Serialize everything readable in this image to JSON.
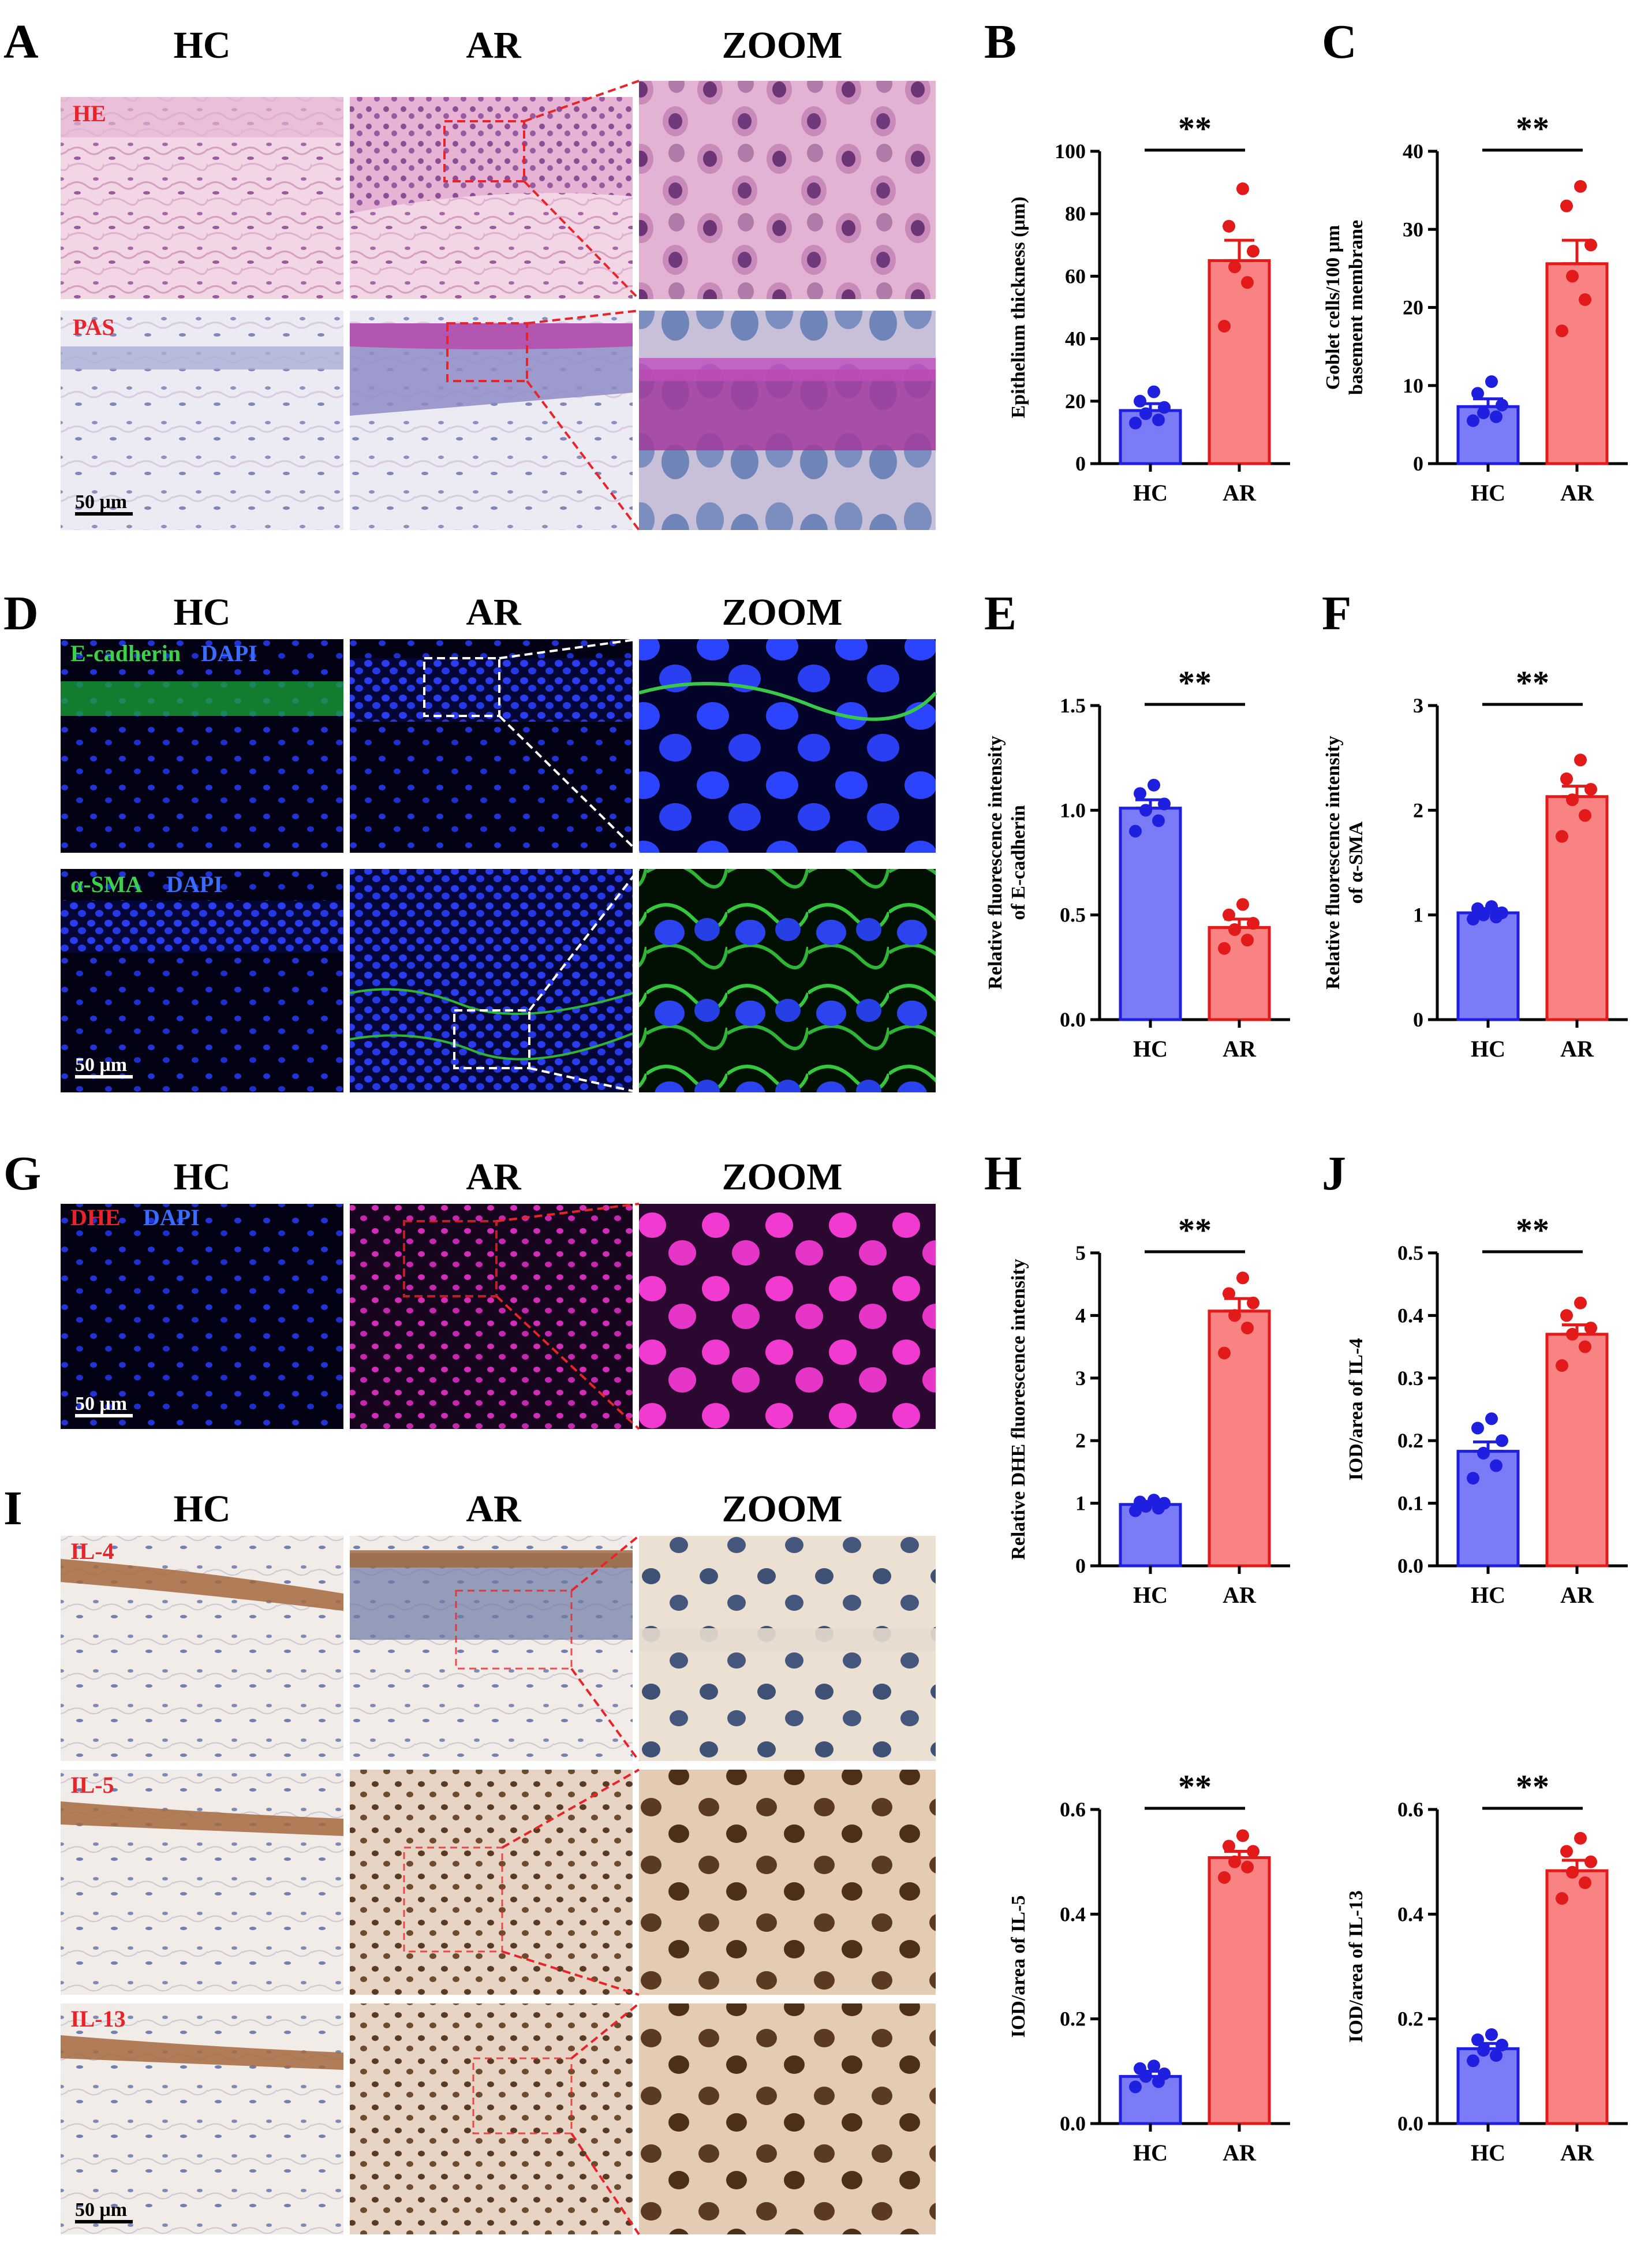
{
  "colors": {
    "hc_fill": "#7b7bf7",
    "hc_edge": "#1f1fe0",
    "ar_fill": "#f98383",
    "ar_edge": "#e21a1a",
    "stain_red": "#e8242a",
    "egfp": "#3dd14a",
    "dapi": "#3b6cff"
  },
  "panel_letters": {
    "A": "A",
    "B": "B",
    "C": "C",
    "D": "D",
    "E": "E",
    "F": "F",
    "G": "G",
    "H": "H",
    "I": "I",
    "J": "J"
  },
  "column_headers": {
    "hc": "HC",
    "ar": "AR",
    "zoom": "ZOOM"
  },
  "stains": {
    "he": "HE",
    "pas": "PAS",
    "ecad": "E-cadherin",
    "asma": "α-SMA",
    "dapi": "DAPI",
    "dhe": "DHE",
    "il4": "IL-4",
    "il5": "IL-5",
    "il13": "IL-13"
  },
  "scale_bar": "50 μm",
  "chart_data": [
    {
      "type": "bar",
      "panel": "B",
      "categories": [
        "HC",
        "AR"
      ],
      "means": [
        17,
        65
      ],
      "sem": [
        2.2,
        6.5
      ],
      "points": [
        [
          13,
          14,
          16,
          18,
          20,
          23
        ],
        [
          44,
          58,
          63,
          68,
          76,
          88
        ]
      ],
      "ylim": [
        0,
        100
      ],
      "yticks": [
        0,
        20,
        40,
        60,
        80,
        100
      ],
      "yticklabels": [
        "0",
        "20",
        "40",
        "60",
        "80",
        "100"
      ],
      "ylabel": [
        "Epithelium thickness (μm)"
      ],
      "significance": "**"
    },
    {
      "type": "bar",
      "panel": "C",
      "categories": [
        "HC",
        "AR"
      ],
      "means": [
        7.3,
        25.6
      ],
      "sem": [
        1.0,
        3.0
      ],
      "points": [
        [
          5.5,
          6,
          6.5,
          7.5,
          9,
          10.5
        ],
        [
          17,
          21,
          24,
          28,
          33,
          35.5
        ]
      ],
      "ylim": [
        0,
        40
      ],
      "yticks": [
        0,
        10,
        20,
        30,
        40
      ],
      "yticklabels": [
        "0",
        "10",
        "20",
        "30",
        "40"
      ],
      "ylabel": [
        "Goblet cells/100 μm",
        "basement membrane"
      ],
      "significance": "**"
    },
    {
      "type": "bar",
      "panel": "E",
      "categories": [
        "HC",
        "AR"
      ],
      "means": [
        1.01,
        0.44
      ],
      "sem": [
        0.04,
        0.04
      ],
      "points": [
        [
          0.9,
          0.95,
          1.0,
          1.03,
          1.08,
          1.12
        ],
        [
          0.34,
          0.38,
          0.43,
          0.46,
          0.5,
          0.55
        ]
      ],
      "ylim": [
        0,
        1.5
      ],
      "yticks": [
        0,
        0.5,
        1.0,
        1.5
      ],
      "yticklabels": [
        "0.0",
        "0.5",
        "1.0",
        "1.5"
      ],
      "ylabel": [
        "Relative fluorescence intensity",
        "of E-cadherin"
      ],
      "significance": "**"
    },
    {
      "type": "bar",
      "panel": "F",
      "categories": [
        "HC",
        "AR"
      ],
      "means": [
        1.02,
        2.13
      ],
      "sem": [
        0.04,
        0.1
      ],
      "points": [
        [
          0.96,
          0.98,
          1.0,
          1.02,
          1.06,
          1.08
        ],
        [
          1.75,
          1.95,
          2.1,
          2.2,
          2.3,
          2.48
        ]
      ],
      "ylim": [
        0,
        3
      ],
      "yticks": [
        0,
        1,
        2,
        3
      ],
      "yticklabels": [
        "0",
        "1",
        "2",
        "3"
      ],
      "ylabel": [
        "Relative fluorescence intensity",
        "of α-SMA"
      ],
      "significance": "**"
    },
    {
      "type": "bar",
      "panel": "H",
      "categories": [
        "HC",
        "AR"
      ],
      "means": [
        0.98,
        4.07
      ],
      "sem": [
        0.05,
        0.2
      ],
      "points": [
        [
          0.88,
          0.92,
          0.95,
          1.0,
          1.02,
          1.05
        ],
        [
          3.4,
          3.8,
          4.0,
          4.2,
          4.35,
          4.6
        ]
      ],
      "ylim": [
        0,
        5
      ],
      "yticks": [
        0,
        1,
        2,
        3,
        4,
        5
      ],
      "yticklabels": [
        "0",
        "1",
        "2",
        "3",
        "4",
        "5"
      ],
      "ylabel": [
        "Relative DHE fluorescence intensity"
      ],
      "significance": "**"
    },
    {
      "type": "bar",
      "panel": "J",
      "categories": [
        "HC",
        "AR"
      ],
      "means": [
        0.183,
        0.37
      ],
      "sem": [
        0.015,
        0.015
      ],
      "points": [
        [
          0.14,
          0.16,
          0.18,
          0.2,
          0.22,
          0.235
        ],
        [
          0.32,
          0.35,
          0.37,
          0.38,
          0.4,
          0.42
        ]
      ],
      "ylim": [
        0,
        0.5
      ],
      "yticks": [
        0,
        0.1,
        0.2,
        0.3,
        0.4,
        0.5
      ],
      "yticklabels": [
        "0.0",
        "0.1",
        "0.2",
        "0.3",
        "0.4",
        "0.5"
      ],
      "ylabel": [
        "IOD/area of IL-4"
      ],
      "significance": "**"
    },
    {
      "type": "bar",
      "panel": "IL-5",
      "categories": [
        "HC",
        "AR"
      ],
      "means": [
        0.09,
        0.508
      ],
      "sem": [
        0.01,
        0.012
      ],
      "points": [
        [
          0.07,
          0.08,
          0.09,
          0.095,
          0.105,
          0.11
        ],
        [
          0.47,
          0.49,
          0.5,
          0.52,
          0.53,
          0.55
        ]
      ],
      "ylim": [
        0,
        0.6
      ],
      "yticks": [
        0,
        0.2,
        0.4,
        0.6
      ],
      "yticklabels": [
        "0.0",
        "0.2",
        "0.4",
        "0.6"
      ],
      "ylabel": [
        "IOD/area of IL-5"
      ],
      "significance": "**"
    },
    {
      "type": "bar",
      "panel": "IL-13",
      "categories": [
        "HC",
        "AR"
      ],
      "means": [
        0.143,
        0.483
      ],
      "sem": [
        0.01,
        0.02
      ],
      "points": [
        [
          0.12,
          0.13,
          0.14,
          0.15,
          0.16,
          0.17
        ],
        [
          0.43,
          0.46,
          0.48,
          0.5,
          0.52,
          0.545
        ]
      ],
      "ylim": [
        0,
        0.6
      ],
      "yticks": [
        0,
        0.2,
        0.4,
        0.6
      ],
      "yticklabels": [
        "0.0",
        "0.2",
        "0.4",
        "0.6"
      ],
      "ylabel": [
        "IOD/area of IL-13"
      ],
      "significance": "**"
    }
  ]
}
